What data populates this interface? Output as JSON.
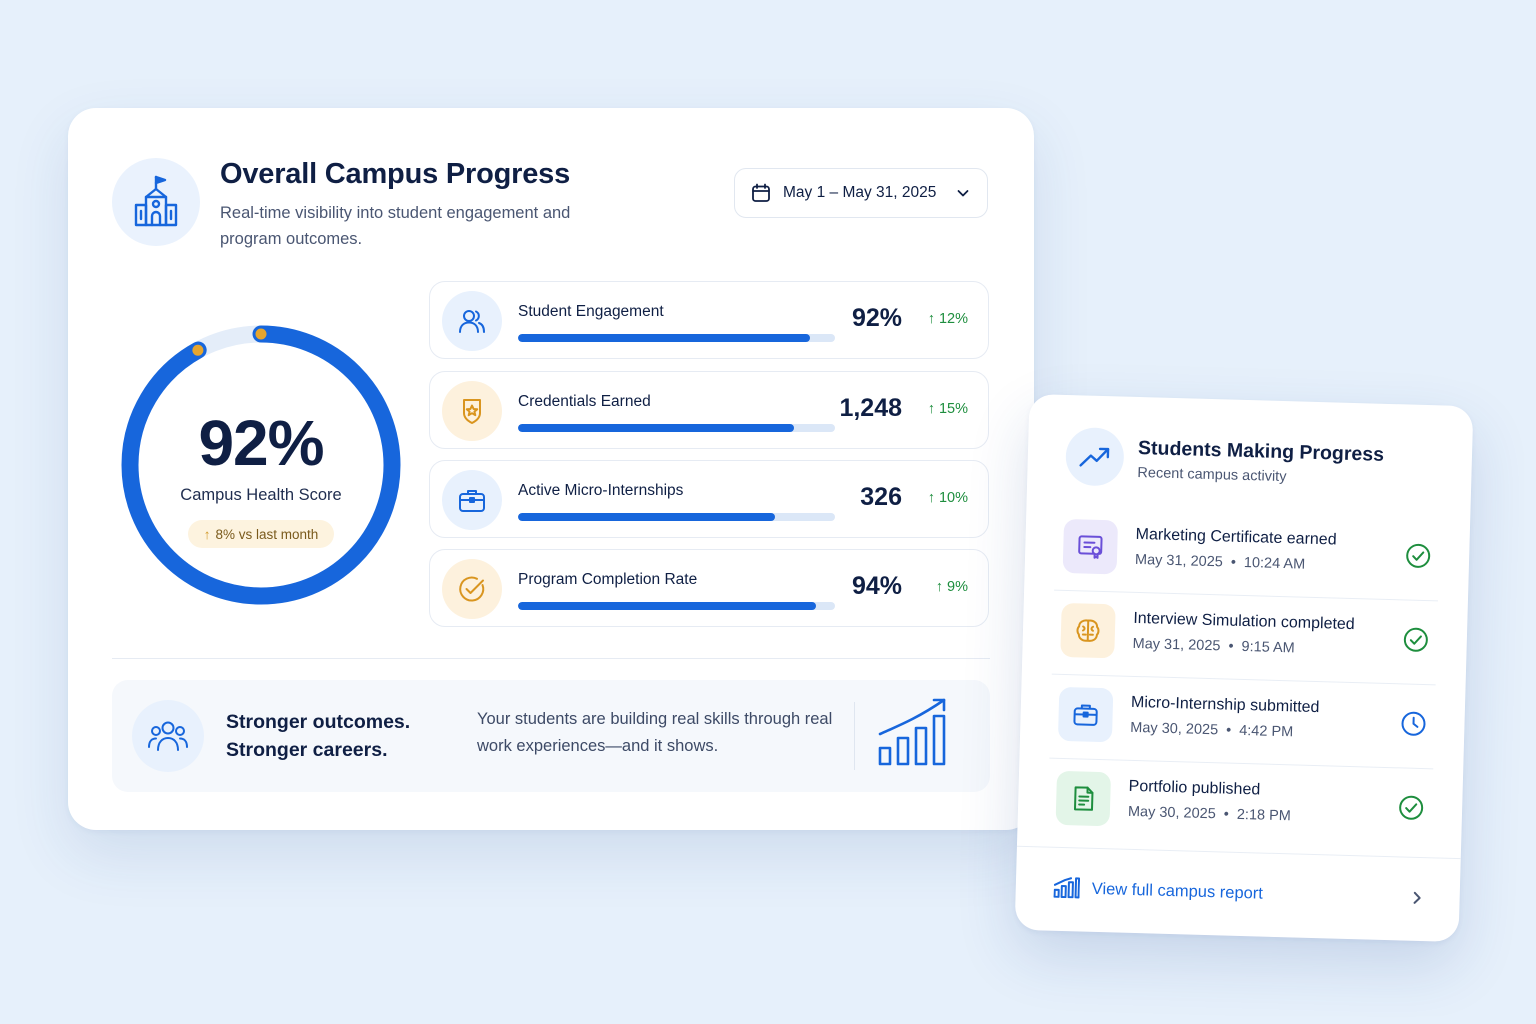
{
  "main": {
    "title": "Overall Campus Progress",
    "subtitle": "Real-time visibility into student engagement and program outcomes.",
    "date_range": "May 1 – May 31, 2025",
    "gauge": {
      "value_label": "92%",
      "value": 0.92,
      "label": "Campus Health Score",
      "delta": "8% vs last month"
    },
    "metrics": [
      {
        "label": "Student Engagement",
        "value": "92%",
        "delta": "12%",
        "progress": 0.92,
        "icon": "users-icon"
      },
      {
        "label": "Credentials Earned",
        "value": "1,248",
        "delta": "15%",
        "progress": 0.87,
        "icon": "award-icon"
      },
      {
        "label": "Active Micro-Internships",
        "value": "326",
        "delta": "10%",
        "progress": 0.81,
        "icon": "briefcase-icon"
      },
      {
        "label": "Program Completion Rate",
        "value": "94%",
        "delta": "9%",
        "progress": 0.94,
        "icon": "check-circle-icon"
      }
    ],
    "banner": {
      "heading_line1": "Stronger outcomes.",
      "heading_line2": "Stronger careers.",
      "text": "Your students are building real skills through real work experiences—and it shows."
    }
  },
  "activity": {
    "title": "Students Making Progress",
    "subtitle": "Recent campus activity",
    "items": [
      {
        "name": "Marketing Certificate earned",
        "date": "May 31, 2025",
        "time": "10:24 AM",
        "status": "completed",
        "icon": "certificate-icon"
      },
      {
        "name": "Interview Simulation completed",
        "date": "May 31, 2025",
        "time": "9:15 AM",
        "status": "completed",
        "icon": "brain-icon"
      },
      {
        "name": "Micro-Internship submitted",
        "date": "May 30, 2025",
        "time": "4:42 PM",
        "status": "pending",
        "icon": "briefcase-icon"
      },
      {
        "name": "Portfolio published",
        "date": "May 30, 2025",
        "time": "2:18 PM",
        "status": "completed",
        "icon": "document-icon"
      }
    ],
    "footer_link": "View full campus report"
  },
  "colors": {
    "accent": "#1766dc",
    "positive": "#1e8e3e",
    "warning": "#d19a2a",
    "text": "#0f1f44"
  }
}
